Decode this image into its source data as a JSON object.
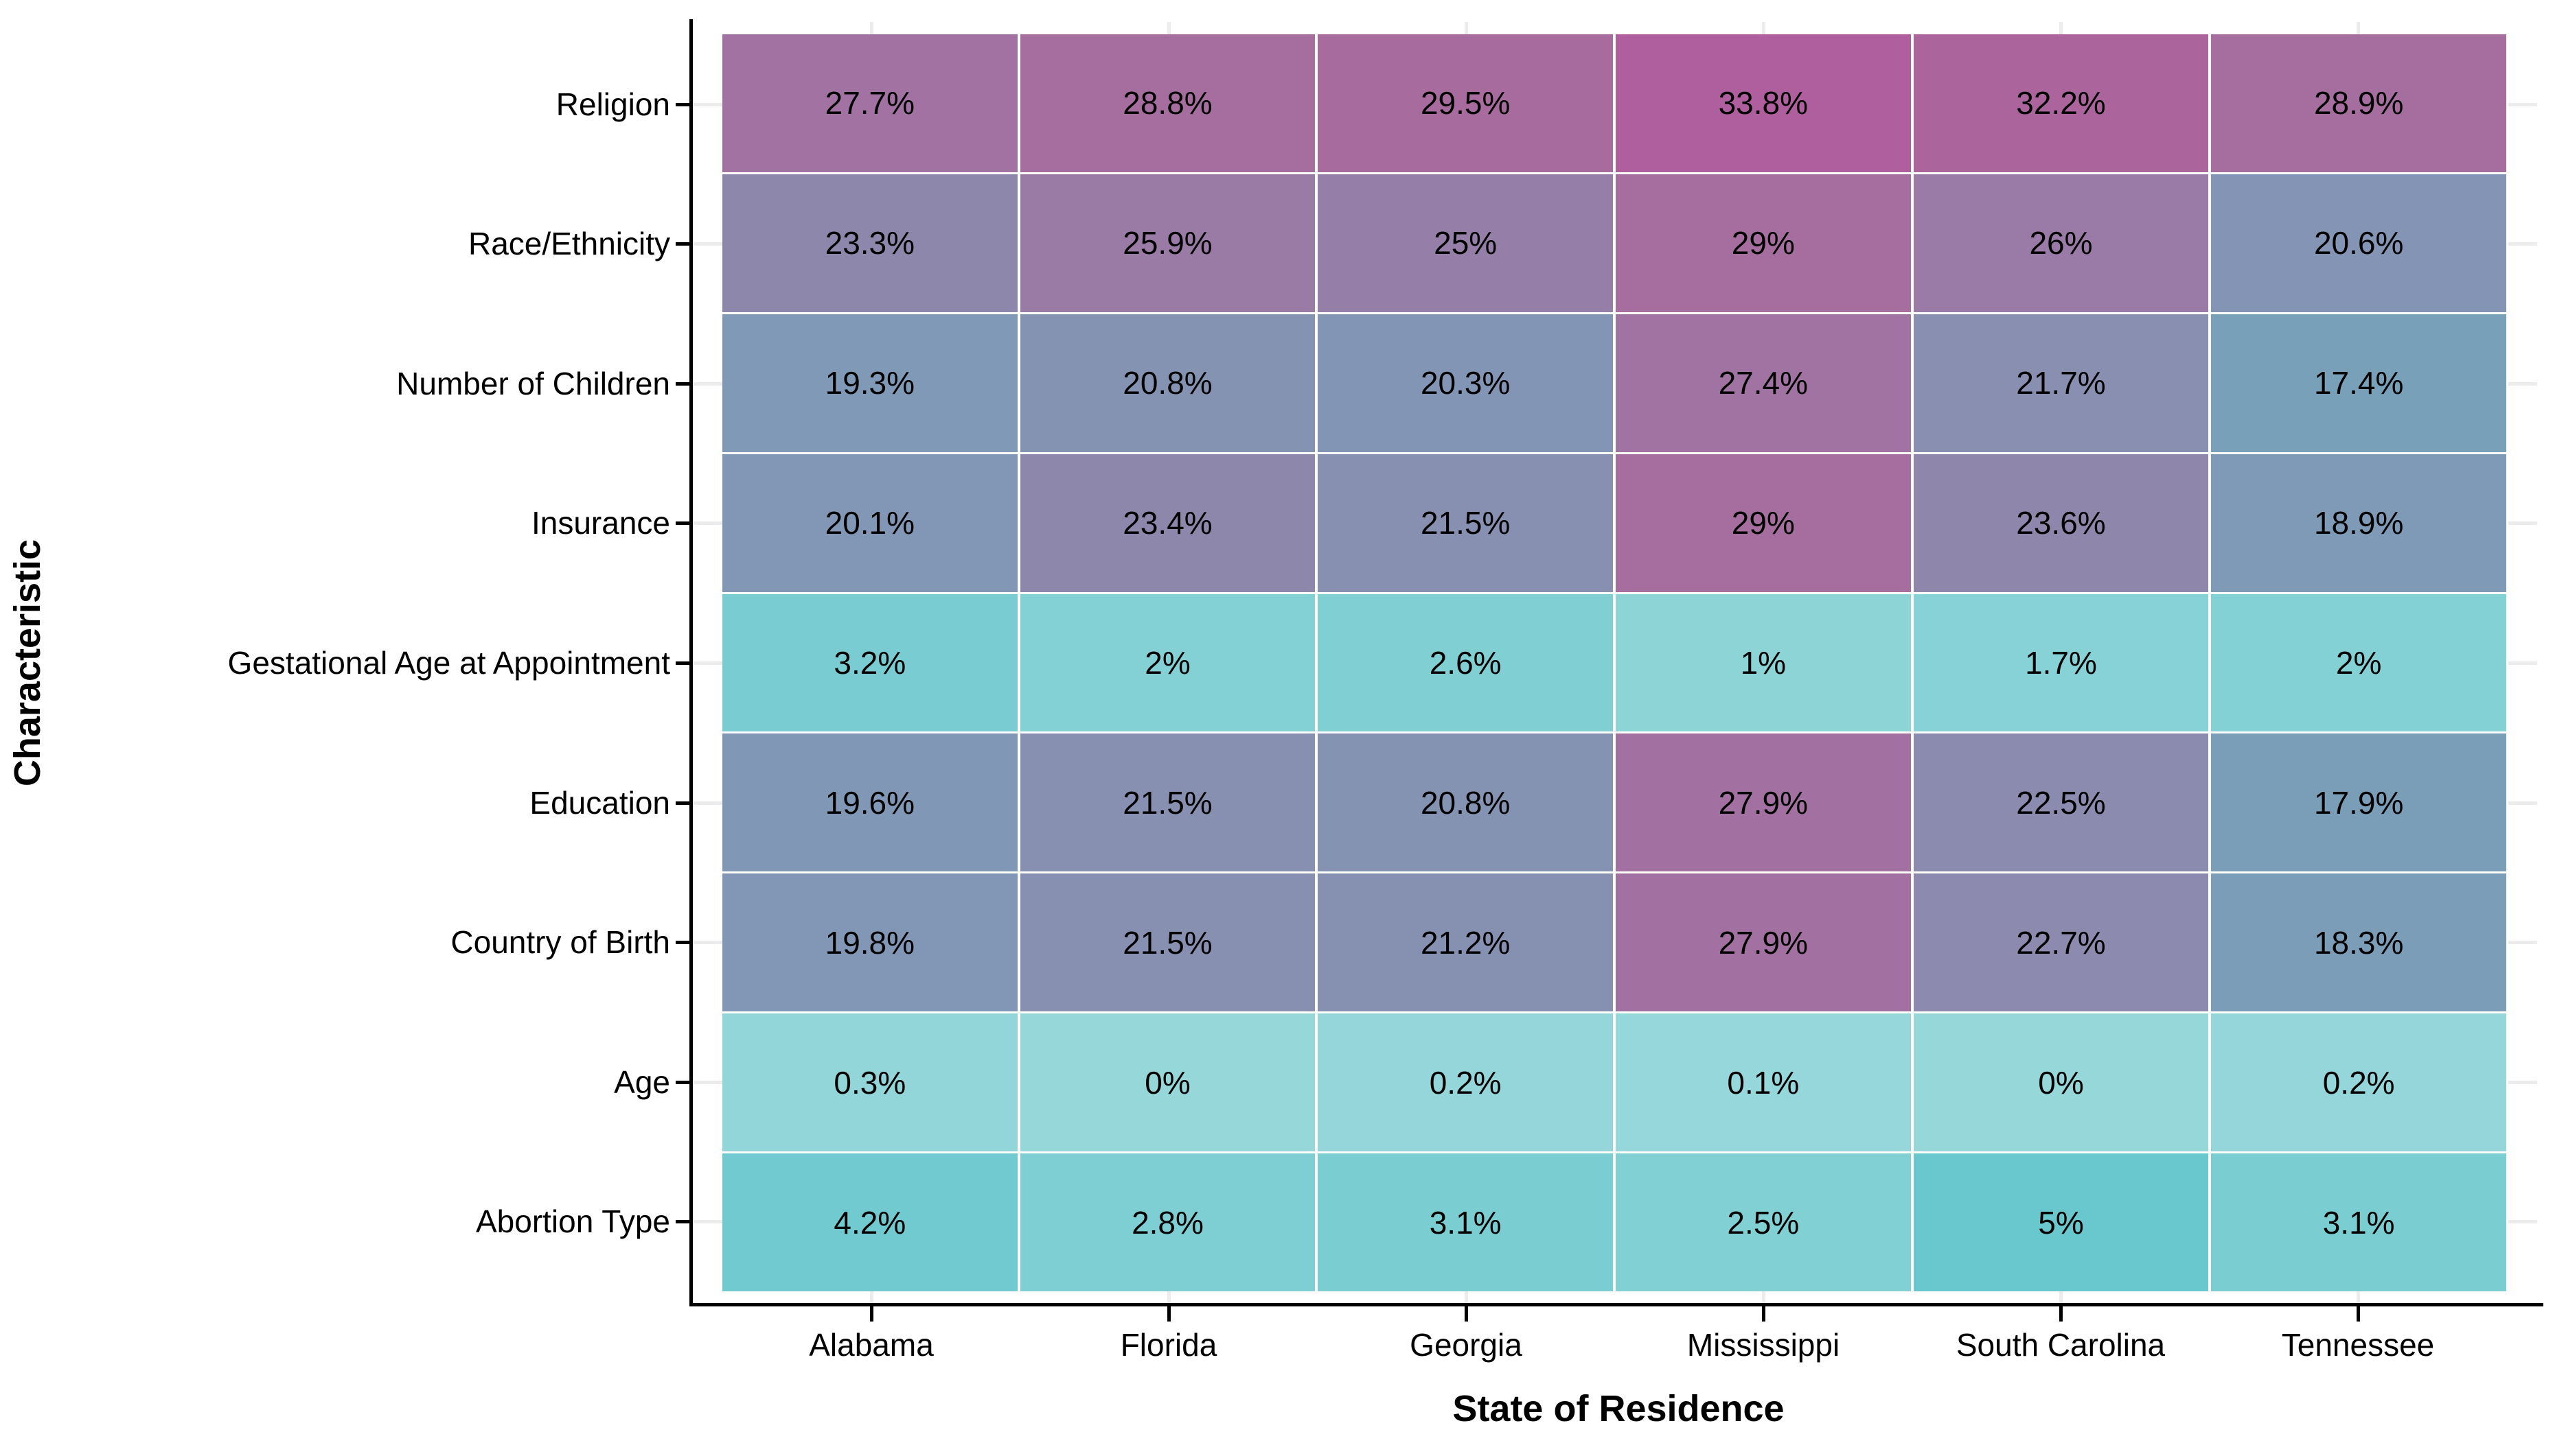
{
  "chart_data": {
    "type": "heatmap",
    "title": "",
    "xlabel": "State of Residence",
    "ylabel": "Characteristic",
    "x_categories": [
      "Alabama",
      "Florida",
      "Georgia",
      "Mississippi",
      "South Carolina",
      "Tennessee"
    ],
    "y_categories": [
      "Religion",
      "Race/Ethnicity",
      "Number of Children",
      "Insurance",
      "Gestational Age at Appointment",
      "Education",
      "Country of Birth",
      "Age",
      "Abortion Type"
    ],
    "values_percent": [
      [
        27.7,
        28.8,
        29.5,
        33.8,
        32.2,
        28.9
      ],
      [
        23.3,
        25.9,
        25,
        29,
        26,
        20.6
      ],
      [
        19.3,
        20.8,
        20.3,
        27.4,
        21.7,
        17.4
      ],
      [
        20.1,
        23.4,
        21.5,
        29,
        23.6,
        18.9
      ],
      [
        3.2,
        2,
        2.6,
        1,
        1.7,
        2
      ],
      [
        19.6,
        21.5,
        20.8,
        27.9,
        22.5,
        17.9
      ],
      [
        19.8,
        21.5,
        21.2,
        27.9,
        22.7,
        18.3
      ],
      [
        0.3,
        0,
        0.2,
        0.1,
        0,
        0.2
      ],
      [
        4.2,
        2.8,
        3.1,
        2.5,
        5,
        3.1
      ]
    ],
    "value_suffix": "%",
    "legend": "none",
    "grid": "faint stubs at row/column centers outside tiles",
    "colors": {
      "axis": "#000000",
      "label_text": "#000000",
      "cell_text": "#000000",
      "grid_stub": "#ececec",
      "background": "#ffffff",
      "colormap_domain": [
        0,
        33.8
      ],
      "colormap_stops": [
        {
          "value": 0,
          "color": "#96D7DA"
        },
        {
          "value": 5,
          "color": "#69C8CD"
        },
        {
          "value": 11,
          "color": "#64B4C3"
        },
        {
          "value": 17.4,
          "color": "#78A0B9"
        },
        {
          "value": 20.6,
          "color": "#8494B4"
        },
        {
          "value": 23.4,
          "color": "#8E87AC"
        },
        {
          "value": 27.7,
          "color": "#A272A2"
        },
        {
          "value": 29.5,
          "color": "#A76C9D"
        },
        {
          "value": 33.8,
          "color": "#AF5F9D"
        }
      ]
    }
  }
}
